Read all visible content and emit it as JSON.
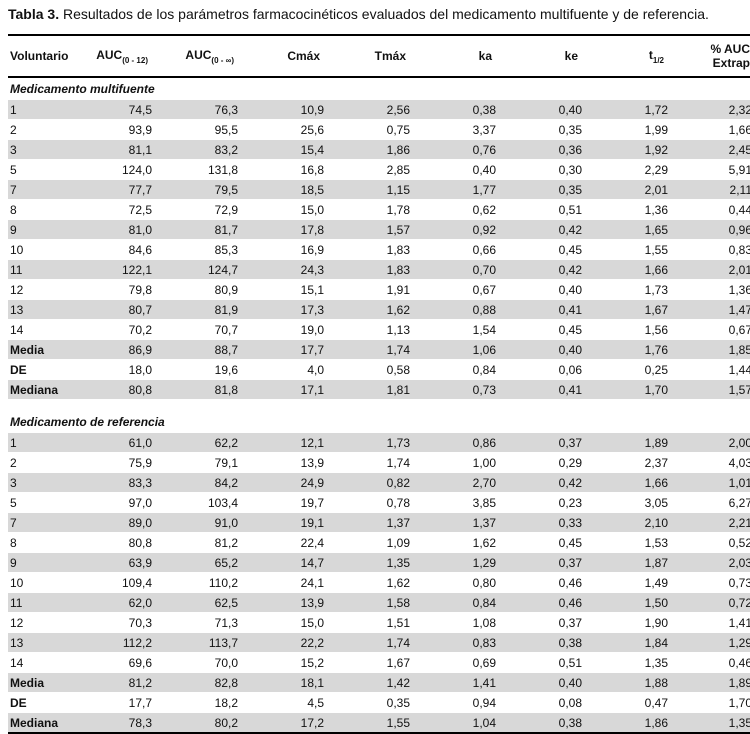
{
  "caption": {
    "label": "Tabla 3.",
    "text": " Resultados de los parámetros farmacocinéticos evaluados del medicamento multifuente y de referencia."
  },
  "headers": {
    "voluntario": "Voluntario",
    "auc012_main": "AUC",
    "auc012_sub": "(0 - 12)",
    "aucinf_main": "AUC",
    "aucinf_sub": "(0 - ∞)",
    "cmax": "Cmáx",
    "tmax": "Tmáx",
    "ka": "ka",
    "ke": "ke",
    "thalf_main": "t",
    "thalf_sub": "1/2",
    "auc_extrap_line1": "% AUC",
    "auc_extrap_line2": "Extrap"
  },
  "sections": [
    {
      "title": "Medicamento multifuente",
      "rows": [
        [
          "1",
          "74,5",
          "76,3",
          "10,9",
          "2,56",
          "0,38",
          "0,40",
          "1,72",
          "2,32"
        ],
        [
          "2",
          "93,9",
          "95,5",
          "25,6",
          "0,75",
          "3,37",
          "0,35",
          "1,99",
          "1,66"
        ],
        [
          "3",
          "81,1",
          "83,2",
          "15,4",
          "1,86",
          "0,76",
          "0,36",
          "1,92",
          "2,45"
        ],
        [
          "5",
          "124,0",
          "131,8",
          "16,8",
          "2,85",
          "0,40",
          "0,30",
          "2,29",
          "5,91"
        ],
        [
          "7",
          "77,7",
          "79,5",
          "18,5",
          "1,15",
          "1,77",
          "0,35",
          "2,01",
          "2,11"
        ],
        [
          "8",
          "72,5",
          "72,9",
          "15,0",
          "1,78",
          "0,62",
          "0,51",
          "1,36",
          "0,44"
        ],
        [
          "9",
          "81,0",
          "81,7",
          "17,8",
          "1,57",
          "0,92",
          "0,42",
          "1,65",
          "0,96"
        ],
        [
          "10",
          "84,6",
          "85,3",
          "16,9",
          "1,83",
          "0,66",
          "0,45",
          "1,55",
          "0,83"
        ],
        [
          "11",
          "122,1",
          "124,7",
          "24,3",
          "1,83",
          "0,70",
          "0,42",
          "1,66",
          "2,01"
        ],
        [
          "12",
          "79,8",
          "80,9",
          "15,1",
          "1,91",
          "0,67",
          "0,40",
          "1,73",
          "1,36"
        ],
        [
          "13",
          "80,7",
          "81,9",
          "17,3",
          "1,62",
          "0,88",
          "0,41",
          "1,67",
          "1,47"
        ],
        [
          "14",
          "70,2",
          "70,7",
          "19,0",
          "1,13",
          "1,54",
          "0,45",
          "1,56",
          "0,67"
        ]
      ],
      "stats": [
        [
          "Media",
          "86,9",
          "88,7",
          "17,7",
          "1,74",
          "1,06",
          "0,40",
          "1,76",
          "1,85"
        ],
        [
          "DE",
          "18,0",
          "19,6",
          "4,0",
          "0,58",
          "0,84",
          "0,06",
          "0,25",
          "1,44"
        ],
        [
          "Mediana",
          "80,8",
          "81,8",
          "17,1",
          "1,81",
          "0,73",
          "0,41",
          "1,70",
          "1,57"
        ]
      ]
    },
    {
      "title": "Medicamento de referencia",
      "rows": [
        [
          "1",
          "61,0",
          "62,2",
          "12,1",
          "1,73",
          "0,86",
          "0,37",
          "1,89",
          "2,00"
        ],
        [
          "2",
          "75,9",
          "79,1",
          "13,9",
          "1,74",
          "1,00",
          "0,29",
          "2,37",
          "4,03"
        ],
        [
          "3",
          "83,3",
          "84,2",
          "24,9",
          "0,82",
          "2,70",
          "0,42",
          "1,66",
          "1,01"
        ],
        [
          "5",
          "97,0",
          "103,4",
          "19,7",
          "0,78",
          "3,85",
          "0,23",
          "3,05",
          "6,27"
        ],
        [
          "7",
          "89,0",
          "91,0",
          "19,1",
          "1,37",
          "1,37",
          "0,33",
          "2,10",
          "2,21"
        ],
        [
          "8",
          "80,8",
          "81,2",
          "22,4",
          "1,09",
          "1,62",
          "0,45",
          "1,53",
          "0,52"
        ],
        [
          "9",
          "63,9",
          "65,2",
          "14,7",
          "1,35",
          "1,29",
          "0,37",
          "1,87",
          "2,03"
        ],
        [
          "10",
          "109,4",
          "110,2",
          "24,1",
          "1,62",
          "0,80",
          "0,46",
          "1,49",
          "0,73"
        ],
        [
          "11",
          "62,0",
          "62,5",
          "13,9",
          "1,58",
          "0,84",
          "0,46",
          "1,50",
          "0,72"
        ],
        [
          "12",
          "70,3",
          "71,3",
          "15,0",
          "1,51",
          "1,08",
          "0,37",
          "1,90",
          "1,41"
        ],
        [
          "13",
          "112,2",
          "113,7",
          "22,2",
          "1,74",
          "0,83",
          "0,38",
          "1,84",
          "1,29"
        ],
        [
          "14",
          "69,6",
          "70,0",
          "15,2",
          "1,67",
          "0,69",
          "0,51",
          "1,35",
          "0,46"
        ]
      ],
      "stats": [
        [
          "Media",
          "81,2",
          "82,8",
          "18,1",
          "1,42",
          "1,41",
          "0,40",
          "1,88",
          "1,89"
        ],
        [
          "DE",
          "17,7",
          "18,2",
          "4,5",
          "0,35",
          "0,94",
          "0,08",
          "0,47",
          "1,70"
        ],
        [
          "Mediana",
          "78,3",
          "80,2",
          "17,2",
          "1,55",
          "1,04",
          "0,38",
          "1,86",
          "1,35"
        ]
      ]
    }
  ]
}
